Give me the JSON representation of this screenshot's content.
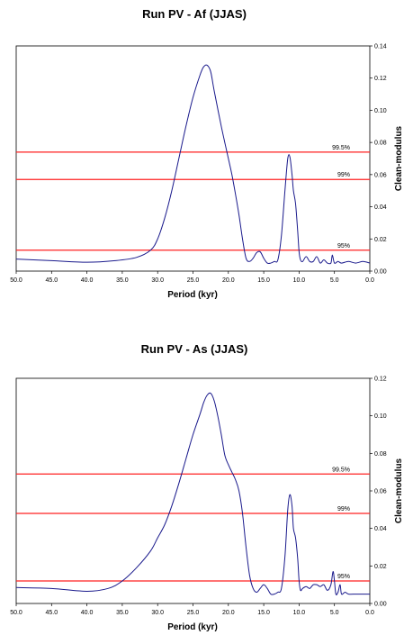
{
  "chart_data": [
    {
      "type": "line",
      "title": "Run PV - Af (JJAS)",
      "xlabel": "Period (kyr)",
      "ylabel": "Clean-modulus",
      "xlim": [
        50,
        0
      ],
      "ylim": [
        0,
        0.14
      ],
      "x_ticks": [
        "50.0",
        "45.0",
        "40.0",
        "35.0",
        "30.0",
        "25.0",
        "20.0",
        "15.0",
        "10.0",
        "5.0",
        "0.0"
      ],
      "y_ticks": [
        "0.00",
        "0.02",
        "0.04",
        "0.06",
        "0.08",
        "0.10",
        "0.12",
        "0.14"
      ],
      "series_color": "#1a1a8c",
      "sig_color": "#ff2020",
      "series": [
        {
          "x": [
            50,
            45,
            40,
            36,
            33,
            31,
            30,
            29,
            28,
            27,
            26,
            25,
            24,
            23.5,
            23,
            22.5,
            22,
            21,
            20,
            19.5,
            19,
            18.5,
            18,
            17.5,
            17,
            16.5,
            16,
            15.5,
            15,
            14.5,
            14,
            13.5,
            13,
            12.5,
            12,
            11.6,
            11.3,
            11,
            10.8,
            10.5,
            10.2,
            10,
            9.8,
            9.5,
            9,
            8.5,
            8,
            7.5,
            7,
            6.5,
            6,
            5.5,
            5.3,
            5,
            4.5,
            4,
            3,
            2,
            1,
            0
          ],
          "y": [
            0.0075,
            0.0065,
            0.0055,
            0.0065,
            0.0085,
            0.013,
            0.02,
            0.033,
            0.05,
            0.07,
            0.09,
            0.108,
            0.122,
            0.127,
            0.128,
            0.124,
            0.112,
            0.09,
            0.07,
            0.06,
            0.048,
            0.035,
            0.02,
            0.008,
            0.006,
            0.008,
            0.0115,
            0.012,
            0.008,
            0.005,
            0.005,
            0.006,
            0.007,
            0.022,
            0.05,
            0.07,
            0.071,
            0.06,
            0.05,
            0.042,
            0.025,
            0.012,
            0.007,
            0.006,
            0.009,
            0.006,
            0.006,
            0.009,
            0.005,
            0.007,
            0.005,
            0.005,
            0.01,
            0.005,
            0.006,
            0.005,
            0.006,
            0.005,
            0.006,
            0.005
          ]
        }
      ],
      "significance": [
        {
          "label": "99.5%",
          "value": 0.074
        },
        {
          "label": "99%",
          "value": 0.057
        },
        {
          "label": "95%",
          "value": 0.013
        }
      ]
    },
    {
      "type": "line",
      "title": "Run PV - As (JJAS)",
      "xlabel": "Period (kyr)",
      "ylabel": "Clean-modulus",
      "xlim": [
        50,
        0
      ],
      "ylim": [
        0,
        0.12
      ],
      "x_ticks": [
        "50.0",
        "45.0",
        "40.0",
        "35.0",
        "30.0",
        "25.0",
        "20.0",
        "15.0",
        "10.0",
        "5.0",
        "0.0"
      ],
      "y_ticks": [
        "0.00",
        "0.02",
        "0.04",
        "0.06",
        "0.08",
        "0.10",
        "0.12"
      ],
      "series_color": "#1a1a8c",
      "sig_color": "#ff2020",
      "series": [
        {
          "x": [
            50,
            45,
            40,
            37,
            35,
            33,
            31,
            30,
            29,
            28,
            27,
            26,
            25,
            24,
            23.5,
            23,
            22.5,
            22,
            21.5,
            21,
            20.5,
            20,
            19.5,
            19,
            18.5,
            18,
            17.5,
            17,
            16.5,
            16,
            15.5,
            15,
            14.5,
            14,
            13.5,
            13,
            12.5,
            12,
            11.6,
            11.3,
            11,
            10.8,
            10.5,
            10.2,
            10,
            9.8,
            9.5,
            9,
            8.5,
            8,
            7.5,
            7,
            6.5,
            6,
            5.5,
            5.2,
            5,
            4.8,
            4.5,
            4.2,
            4,
            3.5,
            3,
            2,
            1,
            0
          ],
          "y": [
            0.0085,
            0.008,
            0.0065,
            0.008,
            0.012,
            0.019,
            0.028,
            0.035,
            0.042,
            0.052,
            0.064,
            0.077,
            0.09,
            0.101,
            0.107,
            0.111,
            0.112,
            0.108,
            0.1,
            0.09,
            0.079,
            0.074,
            0.07,
            0.066,
            0.06,
            0.048,
            0.03,
            0.015,
            0.008,
            0.006,
            0.008,
            0.01,
            0.008,
            0.005,
            0.005,
            0.006,
            0.008,
            0.025,
            0.05,
            0.058,
            0.052,
            0.04,
            0.035,
            0.024,
            0.012,
            0.007,
            0.008,
            0.009,
            0.008,
            0.01,
            0.01,
            0.009,
            0.01,
            0.007,
            0.01,
            0.017,
            0.012,
            0.005,
            0.006,
            0.01,
            0.005,
            0.006,
            0.005,
            0.005,
            0.005,
            0.005
          ]
        }
      ],
      "significance": [
        {
          "label": "99.5%",
          "value": 0.069
        },
        {
          "label": "99%",
          "value": 0.048
        },
        {
          "label": "95%",
          "value": 0.012
        }
      ]
    }
  ]
}
